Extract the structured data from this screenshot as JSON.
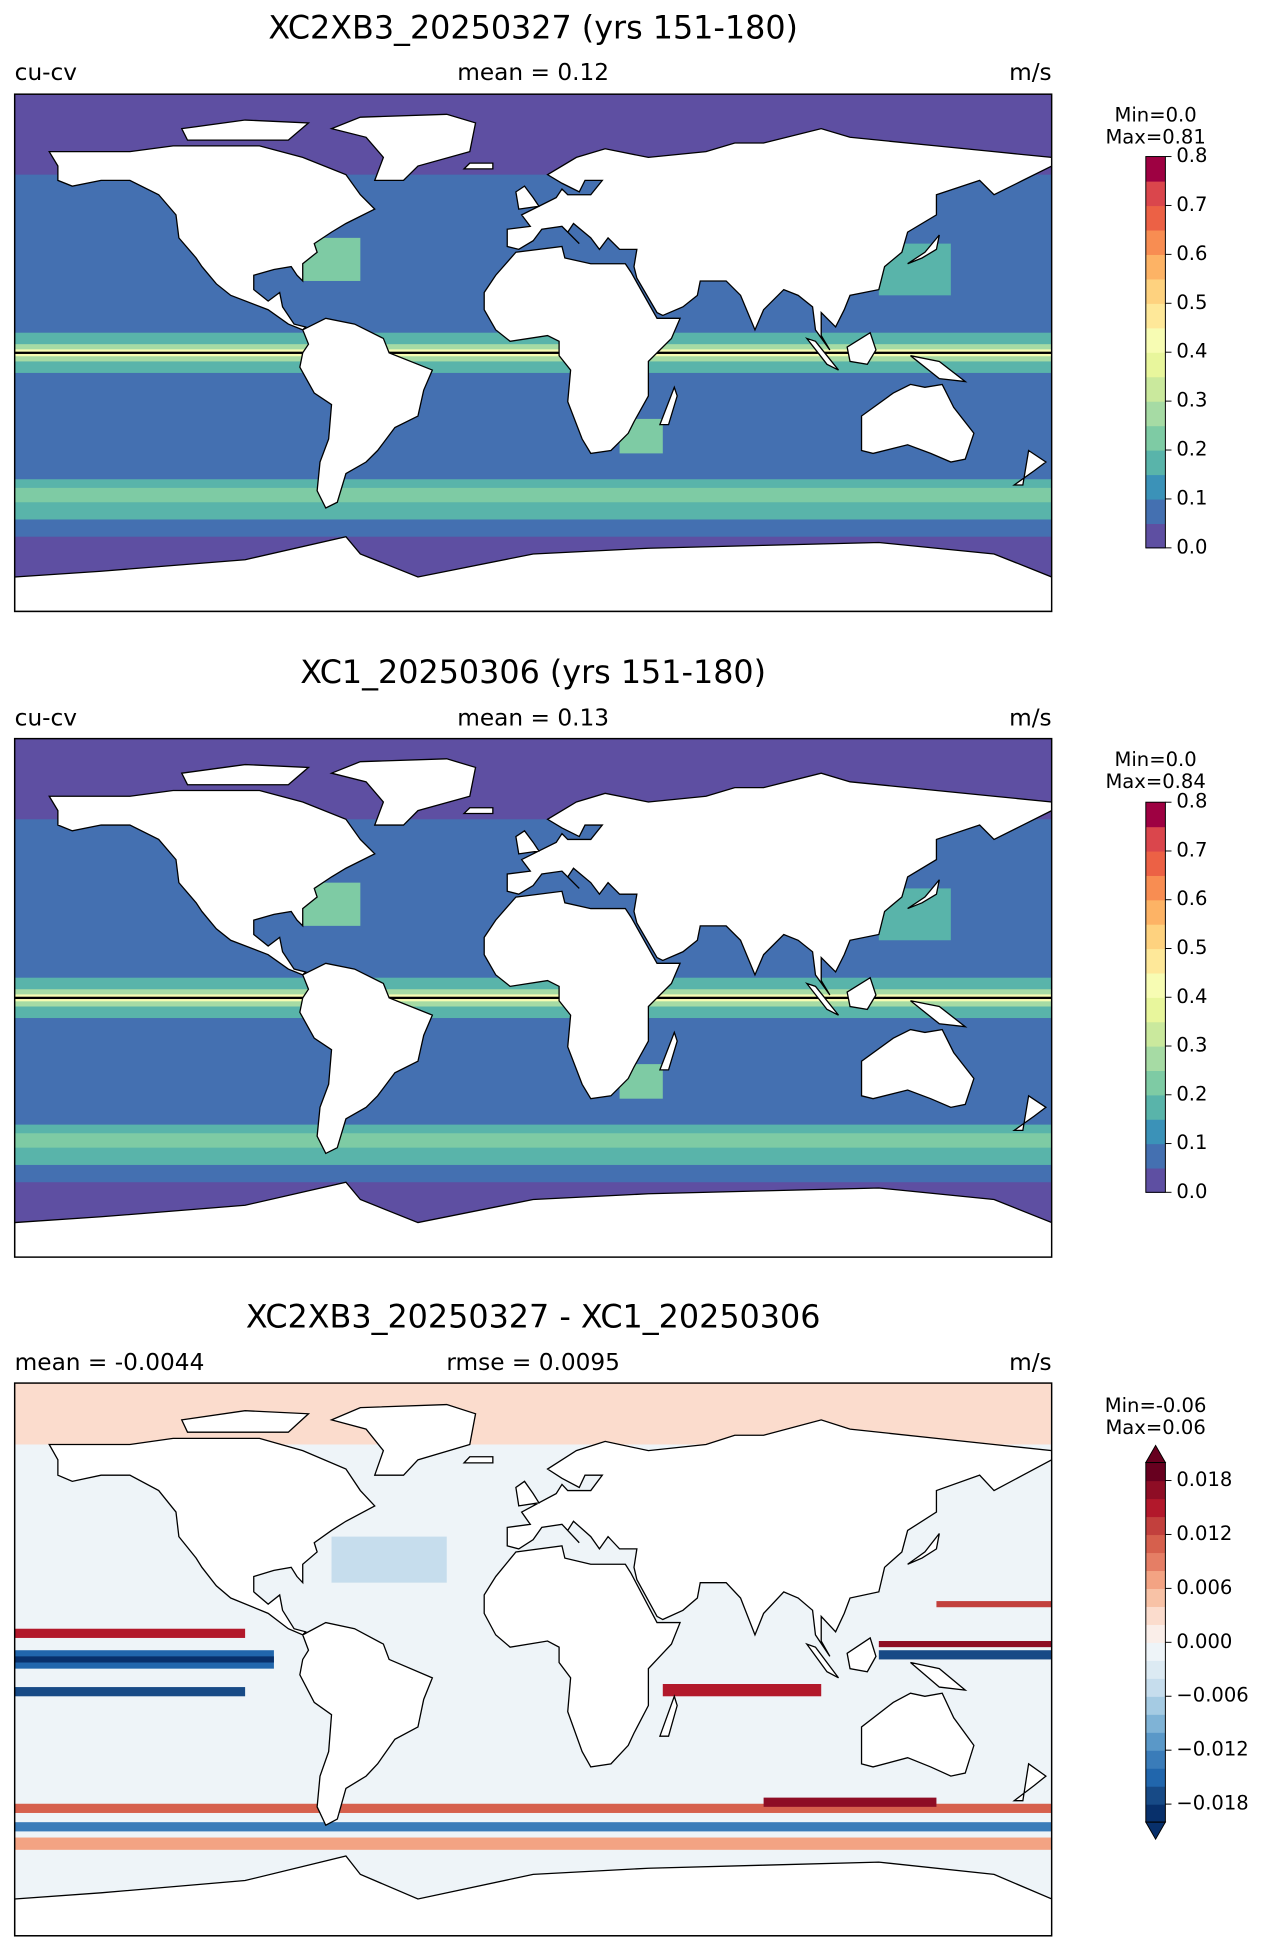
{
  "chart_data": [
    {
      "type": "map",
      "title": "XC2XB3_20250327 (yrs 151-180)",
      "left_label": "cu-cv",
      "center_label": "mean = 0.12",
      "right_label": "m/s",
      "min_label": "Min=0.0",
      "max_label": "Max=0.81",
      "clim": [
        0,
        0.8
      ],
      "cticks": [
        {
          "value": 0,
          "label": "0.0"
        },
        0.1,
        0.2,
        0.3,
        0.4,
        0.5,
        0.6,
        0.7,
        0.8
      ],
      "colors": [
        "#5e4fa2",
        "#4470b1",
        "#3b92b8",
        "#59b4aa",
        "#7ecba4",
        "#a6dba4",
        "#cae99d",
        "#e8f69c",
        "#f7fcb3",
        "#fee899",
        "#fed27f",
        "#fdb365",
        "#f88d52",
        "#ec6145",
        "#da464c",
        "#9e0142"
      ],
      "extend": "neither"
    },
    {
      "type": "map",
      "title": "XC1_20250306 (yrs 151-180)",
      "left_label": "cu-cv",
      "center_label": "mean = 0.13",
      "right_label": "m/s",
      "min_label": "Min=0.0",
      "max_label": "Max=0.84",
      "clim": [
        0,
        0.8
      ],
      "cticks": [
        {
          "value": 0,
          "label": "0.0"
        },
        0.1,
        0.2,
        0.3,
        0.4,
        0.5,
        0.6,
        0.7,
        0.8
      ],
      "colors": [
        "#5e4fa2",
        "#4470b1",
        "#3b92b8",
        "#59b4aa",
        "#7ecba4",
        "#a6dba4",
        "#cae99d",
        "#e8f69c",
        "#f7fcb3",
        "#fee899",
        "#fed27f",
        "#fdb365",
        "#f88d52",
        "#ec6145",
        "#da464c",
        "#9e0142"
      ],
      "extend": "neither"
    },
    {
      "type": "map",
      "title": "XC2XB3_20250327 - XC1_20250306",
      "left_label": "mean = -0.0044",
      "center_label": "rmse = 0.0095",
      "right_label": "m/s",
      "min_label": "Min=-0.06",
      "max_label": "Max=0.06",
      "clim": [
        -0.02,
        0.02
      ],
      "cticks": [
        {
          "value": -0.018,
          "label": "−0.018"
        },
        {
          "value": -0.012,
          "label": "−0.012"
        },
        {
          "value": -0.006,
          "label": "−0.006"
        },
        {
          "value": 0,
          "label": "0.000"
        },
        0.006,
        0.012,
        0.018
      ],
      "colors": [
        "#08306b",
        "#174a86",
        "#2166ac",
        "#3a7cb9",
        "#5a98c8",
        "#7fb3d6",
        "#a5cbe3",
        "#c6dded",
        "#dceaf3",
        "#eef4f8",
        "#faeee9",
        "#fbdccd",
        "#f8c2a6",
        "#f3a383",
        "#e57e65",
        "#d6604d",
        "#c2403d",
        "#b2182b",
        "#8e0d25",
        "#67001f"
      ],
      "extend": "both"
    }
  ]
}
